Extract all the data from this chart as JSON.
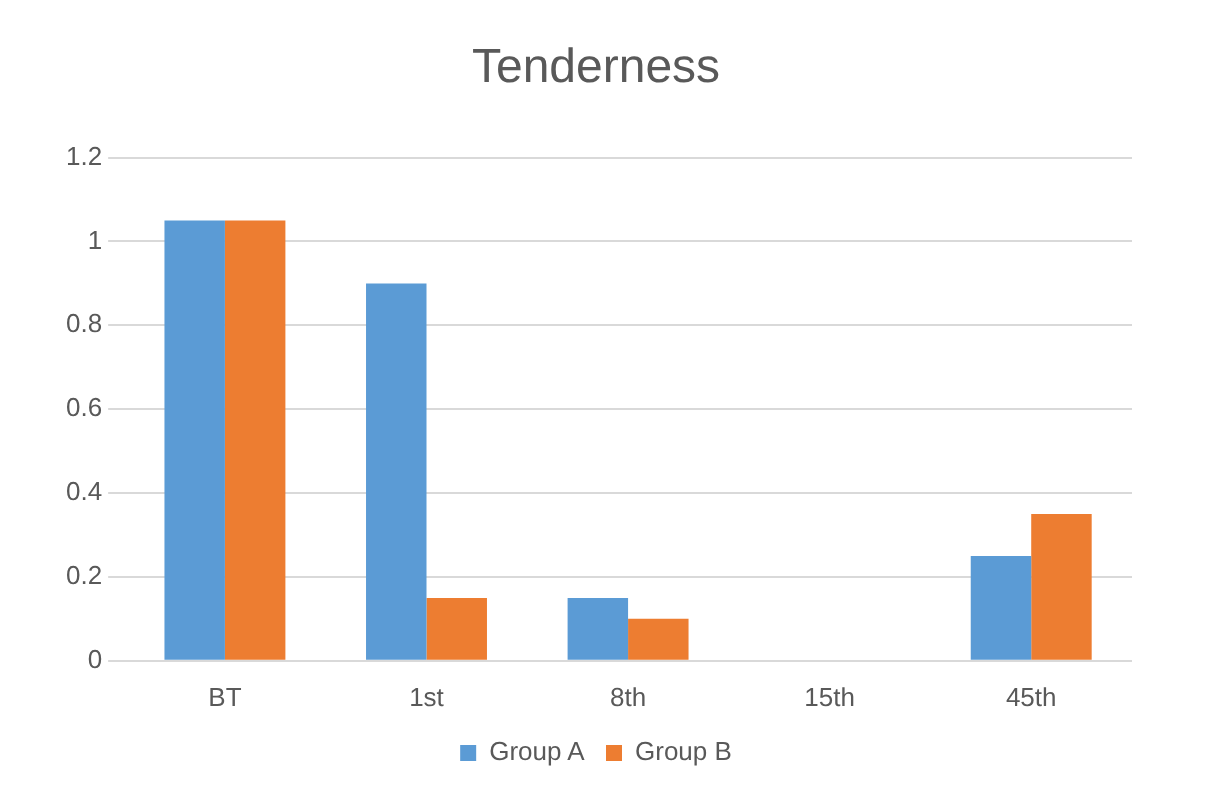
{
  "chart_data": {
    "type": "bar",
    "title": "Tenderness",
    "categories": [
      "BT",
      "1st",
      "8th",
      "15th",
      "45th"
    ],
    "series": [
      {
        "name": "Group A",
        "color": "#5b9bd5",
        "values": [
          1.05,
          0.9,
          0.15,
          0,
          0.25
        ]
      },
      {
        "name": "Group B",
        "color": "#ed7d31",
        "values": [
          1.05,
          0.15,
          0.1,
          0,
          0.35
        ]
      }
    ],
    "ylim": [
      0,
      1.2
    ],
    "yticks": [
      0,
      0.2,
      0.4,
      0.6,
      0.8,
      1,
      1.2
    ],
    "grid": "y",
    "legend": "bottom"
  }
}
